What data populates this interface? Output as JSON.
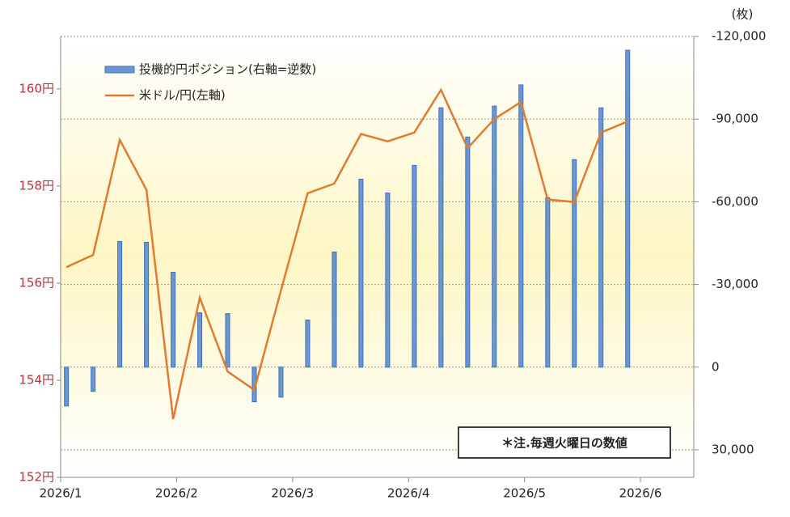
{
  "chart_data": {
    "type": "bar-line",
    "y2_title": "(枚)",
    "note": "＊注.毎週火曜日の数値",
    "x": [
      1.05,
      1.28,
      1.51,
      1.74,
      1.97,
      2.2,
      2.44,
      2.67,
      2.9,
      3.13,
      3.36,
      3.59,
      3.82,
      4.05,
      4.28,
      4.51,
      4.74,
      4.97,
      5.2,
      5.43,
      5.66,
      5.89
    ],
    "xlim": [
      1,
      6.46
    ],
    "xticks": [
      {
        "value": 1,
        "label": "2026/1"
      },
      {
        "value": 2,
        "label": "2026/2"
      },
      {
        "value": 3,
        "label": "2026/3"
      },
      {
        "value": 4,
        "label": "2026/4"
      },
      {
        "value": 5,
        "label": "2026/5"
      },
      {
        "value": 6,
        "label": "2026/6"
      }
    ],
    "ylim": [
      152,
      161.08
    ],
    "yticks": [
      {
        "value": 152,
        "label": "152円"
      },
      {
        "value": 154,
        "label": "154円"
      },
      {
        "value": 156,
        "label": "156円"
      },
      {
        "value": 158,
        "label": "158円"
      },
      {
        "value": 160,
        "label": "160円"
      }
    ],
    "y2lim": [
      -120000,
      40000
    ],
    "y2_reversed": true,
    "y2ticks": [
      {
        "value": -120000,
        "label": "-120,000"
      },
      {
        "value": -90000,
        "label": "-90,000"
      },
      {
        "value": -60000,
        "label": "-60,000"
      },
      {
        "value": -30000,
        "label": "-30,000"
      },
      0,
      {
        "value": 30000,
        "label": "30,000"
      }
    ],
    "grid": true,
    "legend": "top-left",
    "series": [
      {
        "name": "投機的円ポジション(右軸=逆数)",
        "type": "bar",
        "axis": "y2",
        "color": "#6a97d4",
        "values": [
          14100,
          8800,
          -45600,
          -45300,
          -34400,
          -19700,
          -19400,
          12600,
          10900,
          -17100,
          -41800,
          -68200,
          -63200,
          -73200,
          -94100,
          -83500,
          -94700,
          -102400,
          -61500,
          -75300,
          -94100,
          -115000
        ]
      },
      {
        "name": "米ドル/円(左軸)",
        "type": "line",
        "color": "#e07b30",
        "values": [
          156.33,
          156.58,
          158.95,
          157.92,
          153.2,
          155.7,
          154.18,
          153.8,
          155.85,
          157.85,
          158.05,
          159.07,
          158.92,
          159.1,
          159.98,
          158.78,
          159.38,
          159.73,
          157.72,
          157.67,
          159.1,
          159.33
        ]
      }
    ]
  }
}
